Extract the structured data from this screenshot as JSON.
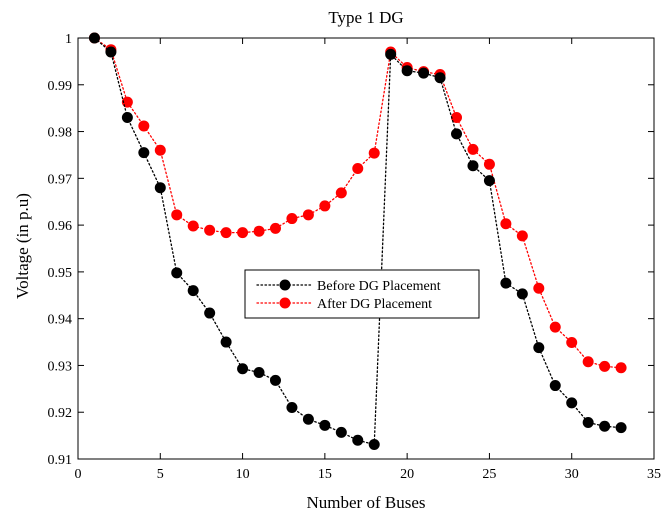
{
  "chart_data": {
    "type": "line",
    "title": "Type 1 DG",
    "xlabel": "Number of Buses",
    "ylabel": "Voltage (in p.u)",
    "xlim": [
      0,
      35
    ],
    "ylim": [
      0.91,
      1.0
    ],
    "xticks": [
      0,
      5,
      10,
      15,
      20,
      25,
      30,
      35
    ],
    "yticks": [
      0.91,
      0.92,
      0.93,
      0.94,
      0.95,
      0.96,
      0.97,
      0.98,
      0.99,
      1.0
    ],
    "xtick_labels": [
      "0",
      "5",
      "10",
      "15",
      "20",
      "25",
      "30",
      "35"
    ],
    "ytick_labels": [
      "0.91",
      "0.92",
      "0.93",
      "0.94",
      "0.95",
      "0.96",
      "0.97",
      "0.98",
      "0.99",
      "1"
    ],
    "grid": false,
    "legend_position": "center",
    "x": [
      1,
      2,
      3,
      4,
      5,
      6,
      7,
      8,
      9,
      10,
      11,
      12,
      13,
      14,
      15,
      16,
      17,
      18,
      19,
      20,
      21,
      22,
      23,
      24,
      25,
      26,
      27,
      28,
      29,
      30,
      31,
      32,
      33
    ],
    "series": [
      {
        "name": "Before DG Placement",
        "color": "#000000",
        "line_style": "dotted",
        "marker": "circle",
        "values": [
          1.0,
          0.997,
          0.983,
          0.9755,
          0.968,
          0.9498,
          0.946,
          0.9412,
          0.935,
          0.9293,
          0.9285,
          0.9268,
          0.921,
          0.9185,
          0.9172,
          0.9157,
          0.914,
          0.9131,
          0.9965,
          0.993,
          0.9925,
          0.9915,
          0.9795,
          0.9727,
          0.9695,
          0.9476,
          0.9453,
          0.9338,
          0.9257,
          0.922,
          0.9178,
          0.917,
          0.9167
        ]
      },
      {
        "name": "After DG Placement",
        "color": "#ff0000",
        "line_style": "dotted",
        "marker": "circle",
        "values": [
          1.0,
          0.9975,
          0.9863,
          0.9812,
          0.976,
          0.9622,
          0.9598,
          0.9589,
          0.9584,
          0.9584,
          0.9587,
          0.9593,
          0.9614,
          0.9622,
          0.9641,
          0.9669,
          0.9721,
          0.9754,
          0.997,
          0.9937,
          0.9928,
          0.9922,
          0.983,
          0.9762,
          0.973,
          0.9603,
          0.9577,
          0.9465,
          0.9382,
          0.9349,
          0.9308,
          0.9298,
          0.9295
        ]
      }
    ]
  }
}
